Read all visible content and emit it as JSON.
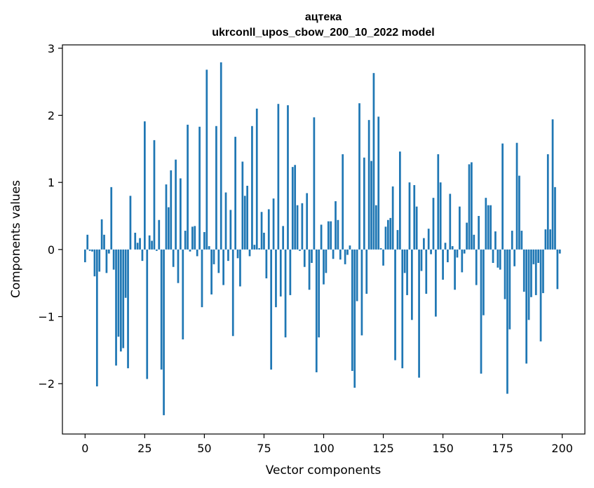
{
  "chart_data": {
    "type": "bar",
    "title": "ацтека",
    "subtitle": "ukrconll_upos_cbow_200_10_2022 model",
    "xlabel": "Vector components",
    "ylabel": "Components values",
    "xlim": [
      -9.5,
      209.5
    ],
    "ylim": [
      -2.75,
      3.05
    ],
    "grid": false,
    "bar_color": "#1f77b4",
    "x_ticks": [
      0,
      25,
      50,
      75,
      100,
      125,
      150,
      175,
      200
    ],
    "x_tick_labels": [
      "0",
      "25",
      "50",
      "75",
      "100",
      "125",
      "150",
      "175",
      "200"
    ],
    "y_ticks": [
      -2,
      -1,
      0,
      1,
      2,
      3
    ],
    "y_tick_labels": [
      "−2",
      "−1",
      "0",
      "1",
      "2",
      "3"
    ],
    "x": [
      0,
      1,
      2,
      3,
      4,
      5,
      6,
      7,
      8,
      9,
      10,
      11,
      12,
      13,
      14,
      15,
      16,
      17,
      18,
      19,
      20,
      21,
      22,
      23,
      24,
      25,
      26,
      27,
      28,
      29,
      30,
      31,
      32,
      33,
      34,
      35,
      36,
      37,
      38,
      39,
      40,
      41,
      42,
      43,
      44,
      45,
      46,
      47,
      48,
      49,
      50,
      51,
      52,
      53,
      54,
      55,
      56,
      57,
      58,
      59,
      60,
      61,
      62,
      63,
      64,
      65,
      66,
      67,
      68,
      69,
      70,
      71,
      72,
      73,
      74,
      75,
      76,
      77,
      78,
      79,
      80,
      81,
      82,
      83,
      84,
      85,
      86,
      87,
      88,
      89,
      90,
      91,
      92,
      93,
      94,
      95,
      96,
      97,
      98,
      99,
      100,
      101,
      102,
      103,
      104,
      105,
      106,
      107,
      108,
      109,
      110,
      111,
      112,
      113,
      114,
      115,
      116,
      117,
      118,
      119,
      120,
      121,
      122,
      123,
      124,
      125,
      126,
      127,
      128,
      129,
      130,
      131,
      132,
      133,
      134,
      135,
      136,
      137,
      138,
      139,
      140,
      141,
      142,
      143,
      144,
      145,
      146,
      147,
      148,
      149,
      150,
      151,
      152,
      153,
      154,
      155,
      156,
      157,
      158,
      159,
      160,
      161,
      162,
      163,
      164,
      165,
      166,
      167,
      168,
      169,
      170,
      171,
      172,
      173,
      174,
      175,
      176,
      177,
      178,
      179,
      180,
      181,
      182,
      183,
      184,
      185,
      186,
      187,
      188,
      189,
      190,
      191,
      192,
      193,
      194,
      195,
      196,
      197,
      198,
      199
    ],
    "values": [
      -0.19,
      0.22,
      -0.02,
      -0.03,
      -0.4,
      -2.04,
      -0.33,
      0.45,
      0.22,
      -0.35,
      -0.06,
      0.93,
      -0.3,
      -1.73,
      -1.3,
      -1.52,
      -1.47,
      -0.72,
      -1.77,
      0.8,
      0.0,
      0.25,
      0.1,
      0.17,
      -0.17,
      1.91,
      -1.93,
      0.21,
      0.13,
      1.63,
      -0.02,
      0.44,
      -1.79,
      -2.47,
      0.97,
      0.63,
      1.18,
      -0.26,
      1.34,
      -0.5,
      1.06,
      -1.34,
      0.28,
      1.86,
      -0.03,
      0.34,
      0.35,
      -0.1,
      1.83,
      -0.86,
      0.26,
      2.68,
      0.05,
      -0.67,
      -0.22,
      1.84,
      -0.35,
      2.79,
      -0.53,
      0.85,
      -0.17,
      0.59,
      -1.29,
      1.68,
      -0.13,
      -0.55,
      1.31,
      0.8,
      0.95,
      -0.1,
      1.84,
      0.07,
      2.1,
      0.02,
      0.56,
      0.25,
      -0.43,
      0.6,
      -1.79,
      0.76,
      -0.86,
      2.17,
      -0.7,
      0.35,
      -1.31,
      2.15,
      -0.68,
      1.23,
      1.26,
      0.66,
      -0.02,
      0.69,
      -0.26,
      0.84,
      -0.6,
      -0.2,
      1.97,
      -1.83,
      -1.31,
      0.37,
      -0.52,
      -0.35,
      0.42,
      0.42,
      -0.14,
      0.72,
      0.44,
      -0.15,
      1.42,
      -0.22,
      -0.08,
      0.06,
      -1.81,
      -2.06,
      -0.77,
      2.18,
      -1.28,
      1.37,
      -0.66,
      1.93,
      1.32,
      2.63,
      0.66,
      1.98,
      0.02,
      -0.24,
      0.34,
      0.44,
      0.47,
      0.94,
      -1.65,
      0.29,
      1.46,
      -1.77,
      -0.35,
      -0.68,
      1.0,
      -1.05,
      0.96,
      0.64,
      -1.91,
      -0.32,
      0.17,
      -0.66,
      0.31,
      -0.07,
      0.77,
      -1.0,
      1.42,
      1.0,
      -0.45,
      0.1,
      -0.19,
      0.83,
      0.05,
      -0.6,
      -0.12,
      0.64,
      -0.34,
      -0.06,
      0.4,
      1.27,
      1.3,
      0.22,
      -0.53,
      0.5,
      -1.85,
      -0.98,
      0.77,
      0.66,
      0.66,
      -0.2,
      0.27,
      -0.27,
      -0.3,
      1.58,
      -0.74,
      -2.15,
      -1.19,
      0.28,
      -0.25,
      1.59,
      1.1,
      0.28,
      -0.63,
      -1.7,
      -1.05,
      -0.71,
      -0.22,
      -0.68,
      -0.2,
      -1.37,
      -0.65,
      0.3,
      1.42,
      0.3,
      1.94,
      0.93,
      -0.59,
      -0.06
    ]
  }
}
